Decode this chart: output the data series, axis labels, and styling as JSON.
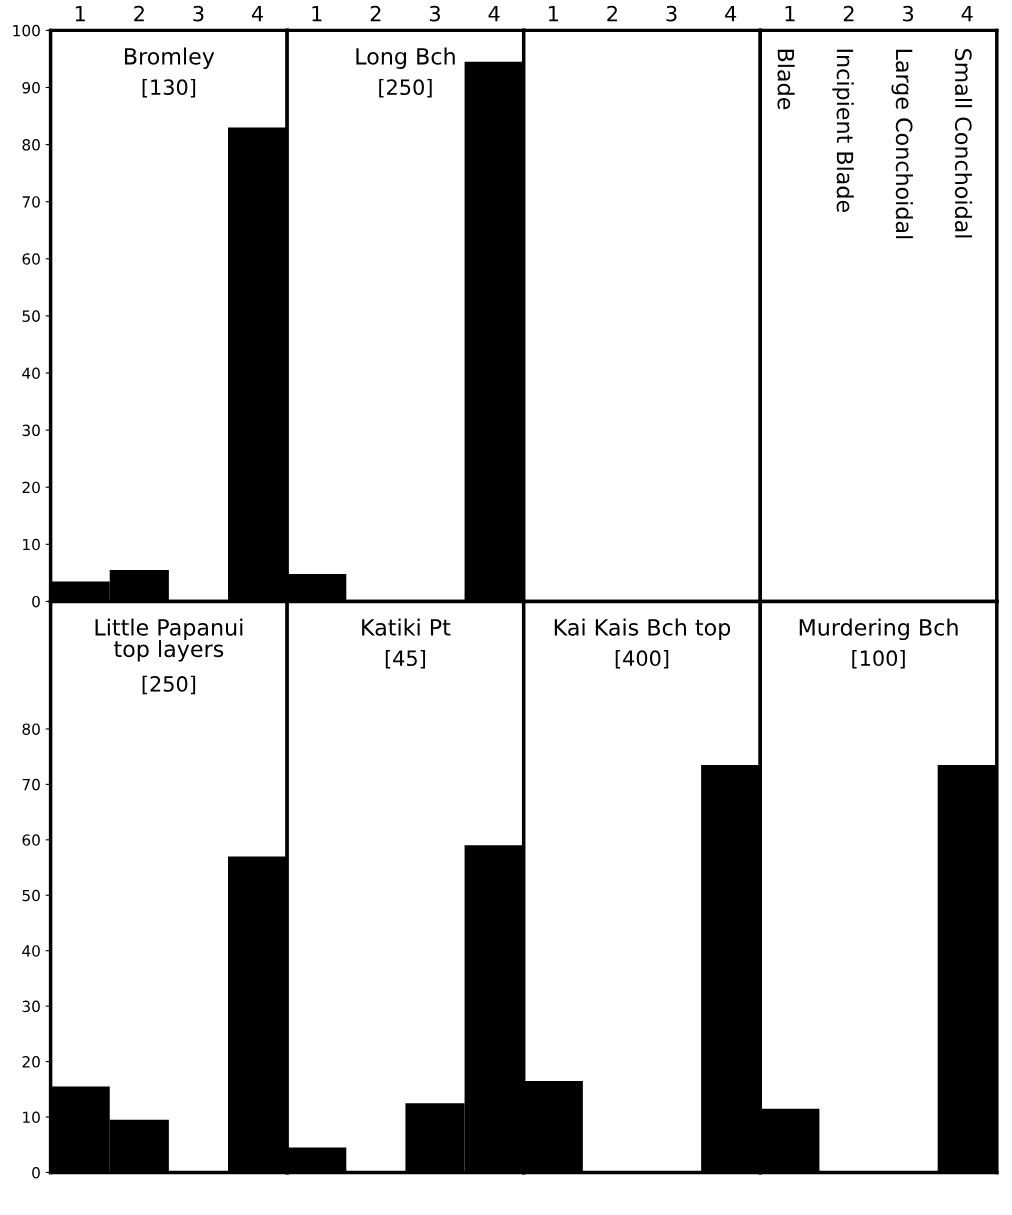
{
  "chart_data": [
    {
      "type": "bar",
      "title": "Bromley",
      "subtitle": "[130]",
      "categories": [
        "1",
        "2",
        "3",
        "4"
      ],
      "values": [
        3.5,
        5.5,
        null,
        83
      ],
      "color": "#000000",
      "ylim": [
        0,
        100
      ],
      "yticks": [
        0,
        10,
        20,
        30,
        40,
        50,
        60,
        70,
        80,
        90,
        100
      ],
      "grid": false
    },
    {
      "type": "bar",
      "title": "Long Bch",
      "subtitle": "[250]",
      "categories": [
        "1",
        "2",
        "3",
        "4"
      ],
      "values": [
        4.8,
        null,
        null,
        94.5
      ],
      "color": "#000000",
      "ylim": [
        0,
        100
      ],
      "tick_labels": "x",
      "grid": false
    },
    {
      "type": "bar",
      "categories": [
        "1",
        "2",
        "3",
        "4"
      ],
      "values": [
        null,
        null,
        null,
        null
      ],
      "ylim": [
        0,
        100
      ],
      "tick_labels": "x",
      "grid": false
    },
    {
      "type": "bar",
      "categories": [
        "1",
        "2",
        "3",
        "4"
      ],
      "values": [
        null,
        null,
        null,
        null
      ],
      "ylim": [
        0,
        100
      ],
      "tick_labels": "x",
      "grid": false,
      "annotations": [
        "Blade",
        "Incipient Blade",
        "Large Conchoidal",
        "Small Conchoidal"
      ]
    },
    {
      "type": "bar",
      "title": "Little Papanui\ntop layers",
      "subtitle": "[250]",
      "categories": [
        "1",
        "2",
        "3",
        "4"
      ],
      "values": [
        15.5,
        9.5,
        null,
        57
      ],
      "color": "#000000",
      "ylim": [
        0,
        103
      ],
      "yticks": [
        0,
        10,
        20,
        30,
        40,
        50,
        60,
        70,
        80
      ],
      "tick_labels": "y",
      "grid": false
    },
    {
      "type": "bar",
      "title": "Katiki Pt",
      "subtitle": "[45]",
      "categories": [
        "1",
        "2",
        "3",
        "4"
      ],
      "values": [
        4.5,
        null,
        12.5,
        59
      ],
      "color": "#000000",
      "ylim": [
        0,
        103
      ],
      "tick_labels": false,
      "grid": false
    },
    {
      "type": "bar",
      "title": "Kai Kais Bch top",
      "subtitle": "[400]",
      "categories": [
        "1",
        "2",
        "3",
        "4"
      ],
      "values": [
        16.5,
        null,
        null,
        73.5
      ],
      "color": "#000000",
      "ylim": [
        0,
        103
      ],
      "tick_labels": false,
      "grid": false
    },
    {
      "type": "bar",
      "title": "Murdering Bch",
      "subtitle": "[100]",
      "categories": [
        "1",
        "2",
        "3",
        "4"
      ],
      "values": [
        11.5,
        null,
        null,
        73.5
      ],
      "color": "#000000",
      "ylim": [
        0,
        103
      ],
      "tick_labels": false,
      "grid": false
    }
  ]
}
